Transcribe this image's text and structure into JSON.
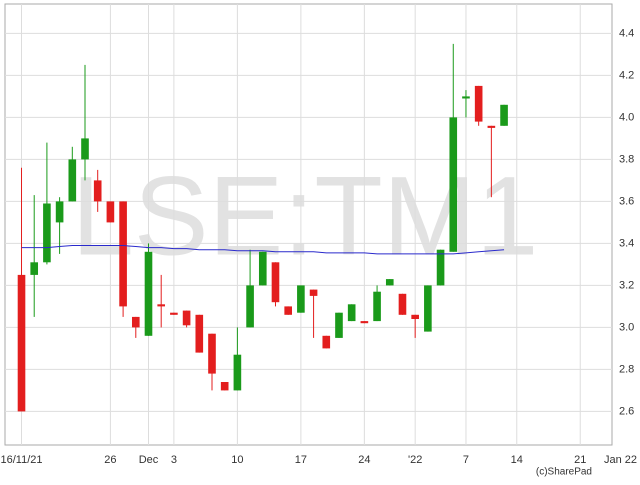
{
  "chart_data": {
    "type": "candlestick",
    "watermark": "LSE:TM1",
    "copyright": "(c)SharePad",
    "x_end_label": "Jan 22",
    "x": [
      0,
      1,
      2,
      3,
      4,
      5,
      6,
      7,
      8,
      9,
      10,
      11,
      12,
      13,
      14,
      15,
      16,
      17,
      18,
      19,
      20,
      21,
      22,
      23,
      24,
      25,
      26,
      27,
      28,
      29,
      30,
      31,
      32,
      33,
      34,
      35,
      36,
      37,
      38
    ],
    "open": [
      3.25,
      3.25,
      3.31,
      3.5,
      3.6,
      3.8,
      3.7,
      3.6,
      3.6,
      3.05,
      2.96,
      3.11,
      3.07,
      3.08,
      3.06,
      2.97,
      2.74,
      2.7,
      3.0,
      3.2,
      3.31,
      3.1,
      3.07,
      3.18,
      2.96,
      2.95,
      3.03,
      3.03,
      3.03,
      3.2,
      3.16,
      3.06,
      2.98,
      3.2,
      3.36,
      4.09,
      4.15,
      3.96,
      3.96
    ],
    "high": [
      3.76,
      3.63,
      3.88,
      3.62,
      3.86,
      4.25,
      3.75,
      3.6,
      3.6,
      3.05,
      3.4,
      3.25,
      3.07,
      3.08,
      3.06,
      2.97,
      2.74,
      3.0,
      3.37,
      3.36,
      3.31,
      3.1,
      3.2,
      3.18,
      2.96,
      3.07,
      3.11,
      3.03,
      3.2,
      3.23,
      3.16,
      3.06,
      3.2,
      3.37,
      4.35,
      4.13,
      4.15,
      3.96,
      4.06
    ],
    "low": [
      2.6,
      3.05,
      3.3,
      3.35,
      3.6,
      3.7,
      3.55,
      3.5,
      3.05,
      2.95,
      2.96,
      3.0,
      3.06,
      3.0,
      2.88,
      2.7,
      2.7,
      2.7,
      3.0,
      3.2,
      3.1,
      3.06,
      3.07,
      2.95,
      2.9,
      2.95,
      3.03,
      3.02,
      3.03,
      3.2,
      3.06,
      2.95,
      2.98,
      3.2,
      3.36,
      4.0,
      3.96,
      3.62,
      3.96
    ],
    "close": [
      2.6,
      3.31,
      3.59,
      3.6,
      3.8,
      3.9,
      3.6,
      3.5,
      3.1,
      3.0,
      3.36,
      3.1,
      3.06,
      3.01,
      2.88,
      2.78,
      2.7,
      2.87,
      3.2,
      3.36,
      3.12,
      3.06,
      3.2,
      3.15,
      2.9,
      3.07,
      3.11,
      3.02,
      3.17,
      3.23,
      3.06,
      3.04,
      3.2,
      3.37,
      4.0,
      4.1,
      3.98,
      3.95,
      4.06
    ],
    "ma": [
      3.38,
      3.38,
      3.38,
      3.385,
      3.39,
      3.39,
      3.39,
      3.39,
      3.39,
      3.385,
      3.38,
      3.38,
      3.375,
      3.375,
      3.37,
      3.37,
      3.37,
      3.365,
      3.365,
      3.365,
      3.36,
      3.36,
      3.36,
      3.36,
      3.355,
      3.355,
      3.355,
      3.355,
      3.35,
      3.35,
      3.35,
      3.35,
      3.35,
      3.35,
      3.35,
      3.355,
      3.36,
      3.365,
      3.37
    ],
    "up_color": "#1a9a1a",
    "down_color": "#e31e1e",
    "ma_color": "#2a2acc",
    "xlim": [
      -1.3,
      46.5
    ],
    "xticks": [
      {
        "value": 0,
        "label": "16/11/21"
      },
      {
        "value": 7,
        "label": "26"
      },
      {
        "value": 10,
        "label": "Dec"
      },
      {
        "value": 12,
        "label": "3"
      },
      {
        "value": 17,
        "label": "10"
      },
      {
        "value": 22,
        "label": "17"
      },
      {
        "value": 27,
        "label": "24"
      },
      {
        "value": 31,
        "label": "'22"
      },
      {
        "value": 35,
        "label": "7"
      },
      {
        "value": 39,
        "label": "14"
      },
      {
        "value": 44,
        "label": "21"
      }
    ],
    "ylim": [
      2.44,
      4.54
    ],
    "yticks": [
      2.6,
      2.8,
      {
        "value": 3,
        "label": "3.0"
      },
      3.2,
      3.4,
      3.6,
      3.8,
      {
        "value": 4,
        "label": "4.0"
      },
      4.2,
      4.4
    ],
    "grid": true
  }
}
